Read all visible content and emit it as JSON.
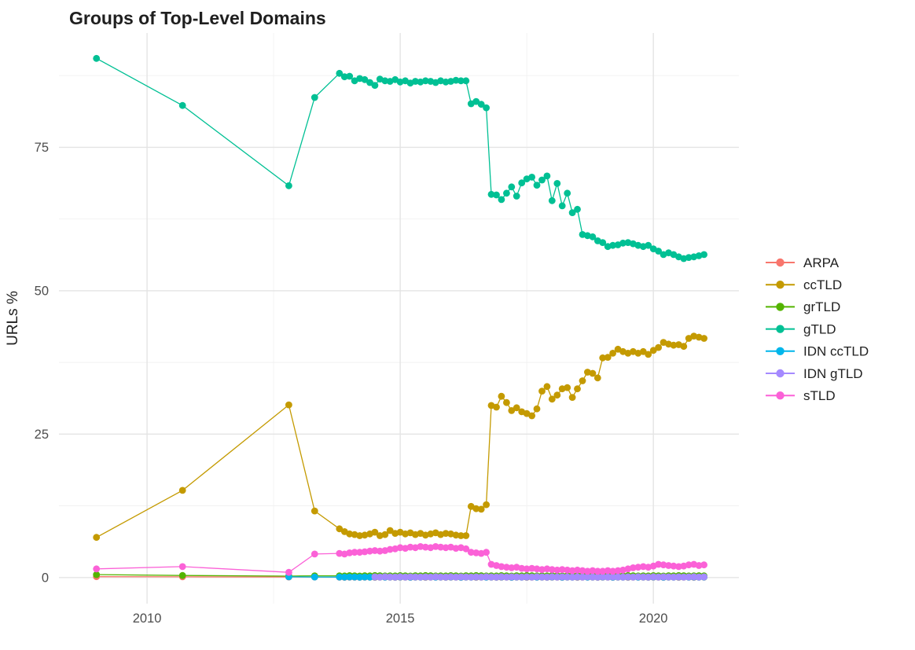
{
  "chart_data": {
    "type": "scatter",
    "title": "Groups of Top-Level Domains",
    "xlabel": "",
    "ylabel": "URLs %",
    "x_ticks": {
      "major": [
        2010,
        2015,
        2020
      ],
      "minor": [
        2012.5,
        2017.5
      ]
    },
    "y_ticks": {
      "major": [
        0,
        25,
        50,
        75
      ],
      "minor": [
        12.5,
        37.5,
        62.5,
        87.5
      ]
    },
    "xlim": [
      2008.26,
      2021.69
    ],
    "ylim": [
      -4.55,
      94.93
    ],
    "grid": true,
    "legend_position": "right",
    "background_color": "#ffffff",
    "grid_color_major": "#e4e4e4",
    "grid_color_minor": "#f1f1f1",
    "axis_text_color": "#4d4d4d",
    "series": [
      {
        "name": "ARPA",
        "color": "#F8766D",
        "points": [
          [
            2009.0,
            0.15
          ],
          [
            2010.7,
            0.12
          ],
          [
            2012.8,
            0.1
          ],
          [
            2013.31,
            0.08
          ]
        ],
        "dense": {
          "x_start": 2013.8,
          "x_step": 0.1,
          "values": [
            0.05,
            0.04,
            0.06,
            0.05,
            0.04,
            0.05,
            0.06,
            0.04,
            0.05,
            0.05,
            0.05,
            0.04,
            0.06,
            0.05,
            0.04,
            0.05,
            0.06,
            0.04,
            0.05,
            0.05,
            0.05,
            0.04,
            0.06,
            0.05,
            0.04,
            0.05,
            0.06,
            0.04,
            0.05,
            0.05,
            0.05,
            0.04,
            0.06,
            0.05,
            0.04,
            0.05,
            0.06,
            0.04,
            0.05,
            0.05,
            0.05,
            0.04,
            0.06,
            0.05,
            0.04,
            0.05,
            0.06,
            0.04,
            0.05,
            0.05,
            0.05,
            0.04,
            0.06,
            0.05,
            0.04,
            0.05,
            0.06,
            0.04,
            0.05,
            0.05,
            0.05,
            0.04,
            0.06,
            0.05,
            0.04,
            0.05,
            0.06,
            0.04,
            0.05,
            0.05,
            0.04,
            0.05,
            0.05
          ]
        }
      },
      {
        "name": "ccTLD",
        "color": "#C49A00",
        "points": [
          [
            2009.0,
            7.0
          ],
          [
            2010.7,
            15.2
          ],
          [
            2012.8,
            30.1
          ],
          [
            2013.31,
            11.6
          ]
        ],
        "dense": {
          "x_start": 2013.8,
          "x_step": 0.1,
          "values": [
            8.5,
            8.0,
            7.6,
            7.5,
            7.3,
            7.4,
            7.6,
            7.9,
            7.3,
            7.5,
            8.2,
            7.7,
            7.9,
            7.6,
            7.8,
            7.5,
            7.7,
            7.4,
            7.6,
            7.8,
            7.5,
            7.7,
            7.6,
            7.4,
            7.3,
            7.3,
            12.4,
            12.0,
            11.9,
            12.7,
            30.0,
            29.7,
            31.6,
            30.5,
            29.1,
            29.6,
            28.9,
            28.6,
            28.2,
            29.4,
            32.5,
            33.3,
            31.1,
            31.8,
            32.9,
            33.1,
            31.4,
            32.9,
            34.3,
            35.8,
            35.6,
            34.8,
            38.3,
            38.4,
            39.1,
            39.8,
            39.4,
            39.1,
            39.4,
            39.1,
            39.4,
            38.9,
            39.6,
            40.1,
            41.0,
            40.7,
            40.5,
            40.6,
            40.3,
            41.7,
            42.1,
            41.9,
            41.7
          ]
        }
      },
      {
        "name": "grTLD",
        "color": "#53B400",
        "points": [
          [
            2009.0,
            0.5
          ],
          [
            2010.7,
            0.35
          ],
          [
            2012.8,
            0.25
          ],
          [
            2013.31,
            0.3
          ]
        ],
        "dense": {
          "x_start": 2013.8,
          "x_step": 0.1,
          "values": [
            0.3,
            0.28,
            0.33,
            0.3,
            0.26,
            0.32,
            0.29,
            0.34,
            0.31,
            0.27,
            0.3,
            0.28,
            0.33,
            0.3,
            0.26,
            0.32,
            0.29,
            0.34,
            0.31,
            0.27,
            0.3,
            0.28,
            0.33,
            0.3,
            0.26,
            0.32,
            0.29,
            0.34,
            0.31,
            0.27,
            0.3,
            0.28,
            0.33,
            0.3,
            0.26,
            0.32,
            0.29,
            0.34,
            0.31,
            0.27,
            0.3,
            0.28,
            0.33,
            0.3,
            0.26,
            0.32,
            0.29,
            0.34,
            0.31,
            0.27,
            0.3,
            0.28,
            0.33,
            0.3,
            0.26,
            0.32,
            0.29,
            0.34,
            0.31,
            0.27,
            0.3,
            0.28,
            0.33,
            0.3,
            0.26,
            0.32,
            0.29,
            0.34,
            0.31,
            0.27,
            0.3,
            0.32,
            0.29
          ]
        }
      },
      {
        "name": "gTLD",
        "color": "#00C094",
        "points": [
          [
            2009.0,
            90.5
          ],
          [
            2010.7,
            82.3
          ],
          [
            2012.8,
            68.3
          ],
          [
            2013.31,
            83.7
          ]
        ],
        "dense": {
          "x_start": 2013.8,
          "x_step": 0.1,
          "values": [
            87.9,
            87.3,
            87.4,
            86.6,
            87.0,
            86.8,
            86.3,
            85.8,
            86.9,
            86.6,
            86.5,
            86.8,
            86.4,
            86.6,
            86.2,
            86.5,
            86.4,
            86.6,
            86.5,
            86.3,
            86.6,
            86.4,
            86.5,
            86.7,
            86.6,
            86.6,
            82.6,
            83.0,
            82.5,
            81.9,
            66.8,
            66.7,
            65.9,
            67.0,
            68.1,
            66.5,
            68.8,
            69.5,
            69.8,
            68.4,
            69.3,
            70.0,
            65.7,
            68.7,
            64.8,
            67.0,
            63.6,
            64.2,
            59.8,
            59.6,
            59.4,
            58.7,
            58.4,
            57.7,
            57.9,
            58.0,
            58.3,
            58.4,
            58.2,
            57.9,
            57.7,
            57.9,
            57.3,
            56.9,
            56.3,
            56.6,
            56.3,
            55.9,
            55.6,
            55.8,
            55.9,
            56.1,
            56.3
          ]
        }
      },
      {
        "name": "IDN ccTLD",
        "color": "#00B6EB",
        "points": [
          [
            2012.8,
            0.12
          ],
          [
            2013.31,
            0.1
          ]
        ],
        "dense": {
          "x_start": 2013.8,
          "x_step": 0.1,
          "values": [
            0.08,
            0.07,
            0.09,
            0.08,
            0.06,
            0.08,
            0.07,
            0.09,
            0.08,
            0.07,
            0.08,
            0.07,
            0.09,
            0.08,
            0.06,
            0.08,
            0.07,
            0.09,
            0.08,
            0.07,
            0.08,
            0.07,
            0.09,
            0.08,
            0.06,
            0.08,
            0.07,
            0.09,
            0.08,
            0.07,
            0.08,
            0.07,
            0.09,
            0.08,
            0.06,
            0.08,
            0.07,
            0.09,
            0.08,
            0.07,
            0.08,
            0.07,
            0.09,
            0.08,
            0.06,
            0.08,
            0.07,
            0.09,
            0.08,
            0.07,
            0.08,
            0.07,
            0.09,
            0.08,
            0.06,
            0.08,
            0.07,
            0.09,
            0.08,
            0.07,
            0.08,
            0.07,
            0.09,
            0.08,
            0.06,
            0.08,
            0.07,
            0.09,
            0.08,
            0.07,
            0.08,
            0.07,
            0.08
          ]
        }
      },
      {
        "name": "IDN gTLD",
        "color": "#A58AFF",
        "points": [],
        "dense": {
          "x_start": 2014.5,
          "x_step": 0.1,
          "values": [
            0.12,
            0.1,
            0.14,
            0.11,
            0.09,
            0.13,
            0.1,
            0.12,
            0.11,
            0.1,
            0.12,
            0.1,
            0.14,
            0.11,
            0.09,
            0.13,
            0.1,
            0.12,
            0.11,
            0.1,
            0.12,
            0.1,
            0.14,
            0.11,
            0.09,
            0.13,
            0.1,
            0.12,
            0.11,
            0.1,
            0.12,
            0.1,
            0.14,
            0.11,
            0.09,
            0.13,
            0.1,
            0.12,
            0.11,
            0.1,
            0.12,
            0.1,
            0.14,
            0.11,
            0.09,
            0.13,
            0.1,
            0.12,
            0.11,
            0.1,
            0.12,
            0.1,
            0.14,
            0.11,
            0.09,
            0.13,
            0.1,
            0.12,
            0.11,
            0.1,
            0.12,
            0.1,
            0.11,
            0.13,
            0.1,
            0.12
          ]
        }
      },
      {
        "name": "sTLD",
        "color": "#FB61D7",
        "points": [
          [
            2009.0,
            1.5
          ],
          [
            2010.7,
            1.9
          ],
          [
            2012.8,
            0.9
          ],
          [
            2013.31,
            4.1
          ]
        ],
        "dense": {
          "x_start": 2013.8,
          "x_step": 0.1,
          "values": [
            4.2,
            4.1,
            4.3,
            4.4,
            4.4,
            4.5,
            4.6,
            4.7,
            4.6,
            4.7,
            4.9,
            5.0,
            5.2,
            5.1,
            5.3,
            5.2,
            5.4,
            5.3,
            5.2,
            5.4,
            5.3,
            5.2,
            5.3,
            5.1,
            5.2,
            5.0,
            4.4,
            4.3,
            4.2,
            4.4,
            2.3,
            2.1,
            1.9,
            1.8,
            1.7,
            1.8,
            1.6,
            1.5,
            1.6,
            1.5,
            1.4,
            1.5,
            1.4,
            1.3,
            1.4,
            1.3,
            1.2,
            1.3,
            1.2,
            1.1,
            1.2,
            1.1,
            1.1,
            1.2,
            1.1,
            1.2,
            1.3,
            1.5,
            1.7,
            1.8,
            1.9,
            1.8,
            2.0,
            2.3,
            2.2,
            2.1,
            2.0,
            1.9,
            2.0,
            2.2,
            2.3,
            2.1,
            2.2
          ]
        }
      }
    ]
  }
}
